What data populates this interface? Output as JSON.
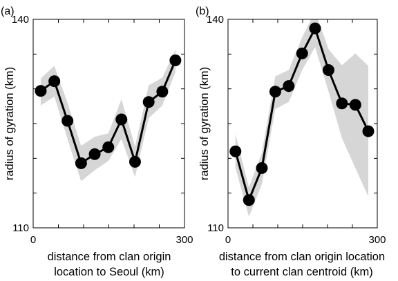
{
  "chart_data": [
    {
      "type": "line",
      "panel_label": "(a)",
      "xlabel": [
        "distance from clan origin",
        "location to Seoul (km)"
      ],
      "ylabel": "radius of gyration (km)",
      "xlim": [
        0,
        300
      ],
      "ylim": [
        110,
        140
      ],
      "xticks": [
        0,
        300
      ],
      "yticks": [
        110,
        140
      ],
      "grid": false,
      "series": [
        {
          "x": [
            15,
            42,
            68,
            95,
            122,
            149,
            175,
            202,
            229,
            256,
            282
          ],
          "y": [
            129.7,
            131.1,
            125.4,
            119.3,
            120.6,
            121.6,
            125.6,
            119.5,
            128.1,
            129.6,
            134.1
          ],
          "band_upper": [
            131.5,
            133.3,
            128.0,
            121.8,
            123.1,
            123.6,
            128.5,
            121.7,
            130.5,
            131.6,
            135.6
          ],
          "band_lower": [
            127.6,
            128.9,
            122.8,
            116.7,
            118.3,
            119.6,
            122.8,
            117.3,
            125.8,
            127.6,
            132.4
          ]
        }
      ]
    },
    {
      "type": "line",
      "panel_label": "(b)",
      "xlabel": [
        "distance from clan origin location",
        "to current clan centroid (km)"
      ],
      "ylabel": "radius of gyration (km)",
      "xlim": [
        0,
        300
      ],
      "ylim": [
        110,
        140
      ],
      "xticks": [
        0,
        300
      ],
      "yticks": [
        110,
        140
      ],
      "grid": false,
      "series": [
        {
          "x": [
            15,
            42,
            68,
            95,
            122,
            149,
            175,
            202,
            229,
            256,
            282
          ],
          "y": [
            121.0,
            114.0,
            118.6,
            129.6,
            130.4,
            135.1,
            138.7,
            132.7,
            127.9,
            127.7,
            123.9
          ],
          "band_upper": [
            123.5,
            115.8,
            120.8,
            131.8,
            132.7,
            137.4,
            141.2,
            135.7,
            133.4,
            135.1,
            133.3
          ],
          "band_lower": [
            118.6,
            111.6,
            116.3,
            127.1,
            128.1,
            132.7,
            136.0,
            129.6,
            122.9,
            118.6,
            114.5
          ]
        }
      ]
    }
  ]
}
